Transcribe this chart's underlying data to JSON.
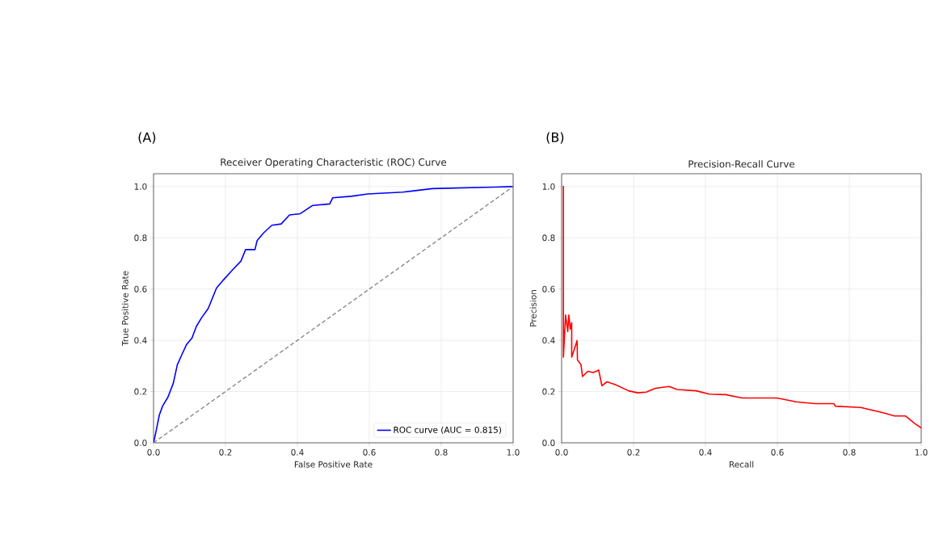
{
  "chart_data": [
    {
      "type": "line",
      "title": "Receiver Operating Characteristic (ROC) Curve",
      "xlabel": "False Positive Rate",
      "ylabel": "True Positive Rate",
      "annotations": [
        "(A)"
      ],
      "xlim": [
        0,
        1
      ],
      "ylim": [
        0,
        1.05
      ],
      "xticks": [
        {
          "value": 0,
          "label": "0.0"
        },
        {
          "value": 0.2,
          "label": "0.2"
        },
        {
          "value": 0.4,
          "label": "0.4"
        },
        {
          "value": 0.6,
          "label": "0.6"
        },
        {
          "value": 0.8,
          "label": "0.8"
        },
        {
          "value": 1,
          "label": "1.0"
        }
      ],
      "yticks": [
        {
          "value": 0,
          "label": "0.0"
        },
        {
          "value": 0.2,
          "label": "0.2"
        },
        {
          "value": 0.4,
          "label": "0.4"
        },
        {
          "value": 0.6,
          "label": "0.6"
        },
        {
          "value": 0.8,
          "label": "0.8"
        },
        {
          "value": 1,
          "label": "1.0"
        }
      ],
      "grid": true,
      "legend": "bottom right",
      "marker": "none",
      "series": [
        {
          "name": "ROC curve (AUC = 0.815)",
          "color": "#0000ff",
          "line_style": "solid",
          "x": [
            0,
            0.006,
            0.016,
            0.025,
            0.04,
            0.055,
            0.066,
            0.077,
            0.092,
            0.107,
            0.119,
            0.134,
            0.152,
            0.175,
            0.194,
            0.216,
            0.243,
            0.256,
            0.282,
            0.288,
            0.306,
            0.329,
            0.355,
            0.378,
            0.408,
            0.442,
            0.49,
            0.498,
            0.55,
            0.596,
            0.693,
            0.776,
            0.949,
            1
          ],
          "values": [
            0,
            0.038,
            0.108,
            0.143,
            0.178,
            0.233,
            0.304,
            0.339,
            0.384,
            0.409,
            0.454,
            0.489,
            0.524,
            0.604,
            0.635,
            0.669,
            0.709,
            0.754,
            0.754,
            0.789,
            0.819,
            0.849,
            0.854,
            0.889,
            0.894,
            0.926,
            0.932,
            0.956,
            0.962,
            0.971,
            0.978,
            0.992,
            0.998,
            1
          ]
        },
        {
          "type": "line",
          "color": "#808080",
          "line_style": "dashed",
          "x": [
            0,
            1
          ],
          "values": [
            0,
            1
          ]
        }
      ]
    },
    {
      "type": "line",
      "title": "Precision-Recall Curve",
      "xlabel": "Recall",
      "ylabel": "Precision",
      "annotations": [
        "(B)"
      ],
      "xlim": [
        0,
        1
      ],
      "ylim": [
        0,
        1.05
      ],
      "xticks": [
        {
          "value": 0,
          "label": "0.0"
        },
        {
          "value": 0.2,
          "label": "0.2"
        },
        {
          "value": 0.4,
          "label": "0.4"
        },
        {
          "value": 0.6,
          "label": "0.6"
        },
        {
          "value": 0.8,
          "label": "0.8"
        },
        {
          "value": 1,
          "label": "1.0"
        }
      ],
      "yticks": [
        {
          "value": 0,
          "label": "0.0"
        },
        {
          "value": 0.2,
          "label": "0.2"
        },
        {
          "value": 0.4,
          "label": "0.4"
        },
        {
          "value": 0.6,
          "label": "0.6"
        },
        {
          "value": 0.8,
          "label": "0.8"
        },
        {
          "value": 1,
          "label": "1.0"
        }
      ],
      "grid": true,
      "marker": "none",
      "series": [
        {
          "color": "#ff0000",
          "line_style": "solid",
          "x": [
            0.003,
            0.005,
            0.005,
            0.011,
            0.017,
            0.02,
            0.024,
            0.028,
            0.028,
            0.043,
            0.044,
            0.054,
            0.058,
            0.073,
            0.088,
            0.103,
            0.112,
            0.126,
            0.148,
            0.186,
            0.212,
            0.235,
            0.261,
            0.299,
            0.321,
            0.374,
            0.411,
            0.456,
            0.502,
            0.599,
            0.652,
            0.705,
            0.757,
            0.761,
            0.832,
            0.892,
            0.926,
            0.956,
            0.982,
            1.0
          ],
          "values": [
            1.0,
            1.0,
            0.334,
            0.499,
            0.434,
            0.499,
            0.444,
            0.469,
            0.334,
            0.399,
            0.324,
            0.304,
            0.259,
            0.279,
            0.274,
            0.284,
            0.223,
            0.238,
            0.228,
            0.203,
            0.195,
            0.198,
            0.213,
            0.22,
            0.208,
            0.203,
            0.19,
            0.188,
            0.175,
            0.175,
            0.16,
            0.153,
            0.153,
            0.143,
            0.138,
            0.118,
            0.105,
            0.105,
            0.075,
            0.058
          ]
        }
      ]
    }
  ]
}
